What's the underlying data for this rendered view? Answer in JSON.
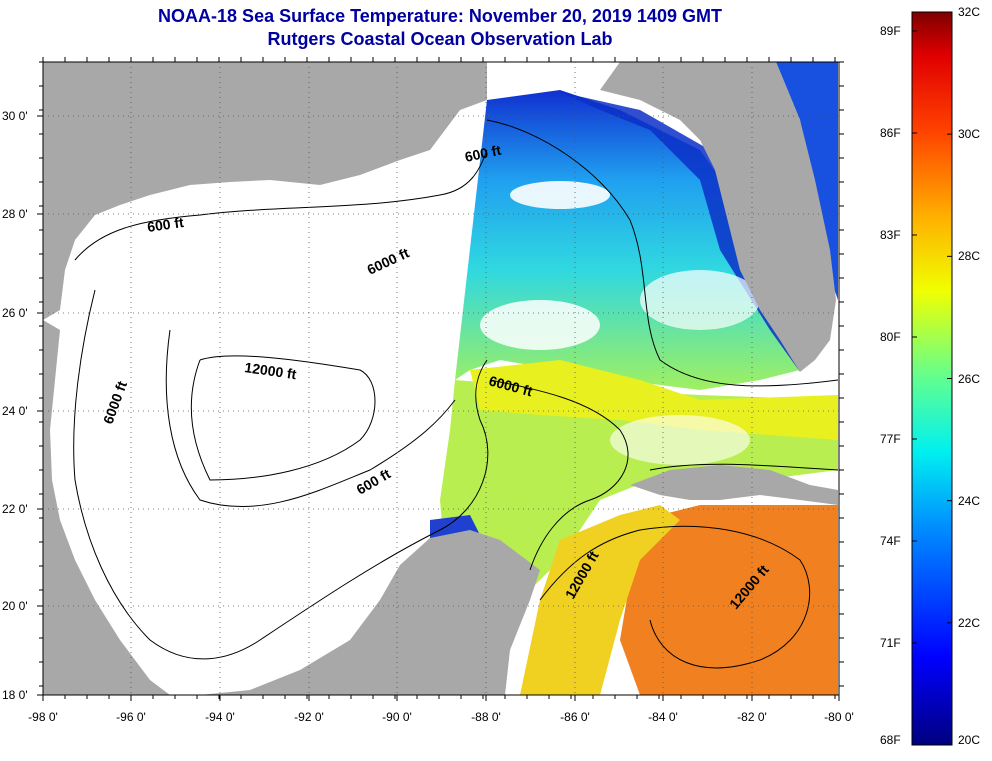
{
  "title": {
    "line1": "NOAA-18 Sea Surface Temperature:  November 20, 2019 1409 GMT",
    "line2": "Rutgers Coastal Ocean Observation Lab"
  },
  "axes": {
    "lon_labels": [
      "-98 0'",
      "-96 0'",
      "-94 0'",
      "-92 0'",
      "-90 0'",
      "-88 0'",
      "-86 0'",
      "-84 0'",
      "-82 0'",
      "-80 0'"
    ],
    "lat_labels": [
      "30 0'",
      "28 0'",
      "26 0'",
      "24 0'",
      "22 0'",
      "20 0'",
      "18 0'"
    ]
  },
  "contours": {
    "labels": [
      "600 ft",
      "6000 ft",
      "12000 ft",
      "6000 ft",
      "600 ft",
      "600 ft",
      "6000 ft",
      "12000 ft",
      "12000 ft"
    ]
  },
  "colorbar": {
    "celsius": [
      "32C",
      "30C",
      "28C",
      "26C",
      "24C",
      "22C",
      "20C"
    ],
    "fahrenheit": [
      "89F",
      "86F",
      "83F",
      "80F",
      "77F",
      "74F",
      "71F",
      "68F"
    ]
  },
  "colors": {
    "land": "#a8a8a8",
    "cloud": "#ffffff",
    "title": "#0000a0"
  }
}
